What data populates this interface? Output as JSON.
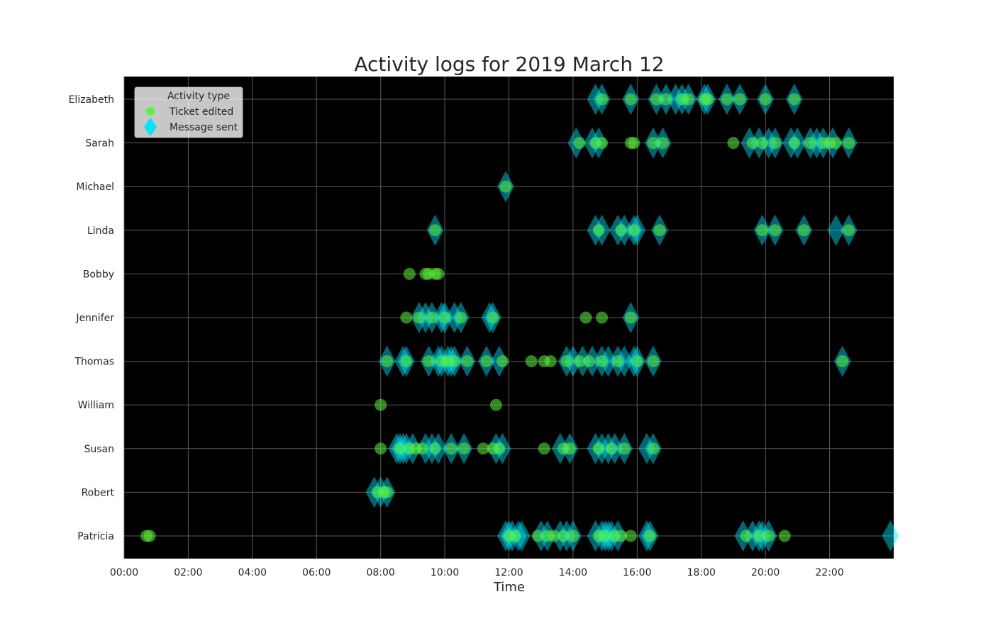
{
  "chart_data": {
    "type": "scatter",
    "title": "Activity logs for 2019 March 12",
    "xlabel": "Time",
    "ylabel": "",
    "x_unit": "time of day (HH:MM)",
    "xlim": [
      "00:00",
      "24:00"
    ],
    "x_ticks": [
      "00:00",
      "02:00",
      "04:00",
      "06:00",
      "08:00",
      "10:00",
      "12:00",
      "14:00",
      "16:00",
      "18:00",
      "20:00",
      "22:00"
    ],
    "categories": [
      "Elizabeth",
      "Sarah",
      "Michael",
      "Linda",
      "Bobby",
      "Jennifer",
      "Thomas",
      "William",
      "Susan",
      "Robert",
      "Patricia"
    ],
    "grid": true,
    "background": "#000000",
    "legend": {
      "title": "Activity type",
      "placement": "top-left",
      "entries": [
        "Ticket edited",
        "Message sent"
      ]
    },
    "series": [
      {
        "name": "Message sent",
        "marker": "diamond",
        "color": "#00e5ff",
        "points": [
          {
            "y": "Elizabeth",
            "x": [
              "14:42",
              "14:54",
              "15:48",
              "16:36",
              "16:54",
              "17:12",
              "17:24",
              "17:36",
              "18:06",
              "18:12",
              "18:48",
              "19:12",
              "20:00",
              "20:54"
            ]
          },
          {
            "y": "Sarah",
            "x": [
              "14:06",
              "14:36",
              "14:48",
              "16:30",
              "16:48",
              "19:30",
              "19:48",
              "20:06",
              "20:18",
              "20:48",
              "21:00",
              "21:24",
              "21:36",
              "21:48",
              "22:06",
              "22:36"
            ]
          },
          {
            "y": "Michael",
            "x": [
              "11:54"
            ]
          },
          {
            "y": "Linda",
            "x": [
              "09:42",
              "14:42",
              "14:54",
              "15:24",
              "15:36",
              "15:54",
              "16:00",
              "16:42",
              "19:54",
              "20:18",
              "21:12",
              "22:12",
              "22:36"
            ]
          },
          {
            "y": "Jennifer",
            "x": [
              "09:12",
              "09:24",
              "09:36",
              "09:54",
              "10:00",
              "10:18",
              "10:30",
              "11:24",
              "11:30",
              "15:48"
            ]
          },
          {
            "y": "Thomas",
            "x": [
              "08:12",
              "08:42",
              "08:48",
              "09:30",
              "09:48",
              "09:54",
              "10:06",
              "10:12",
              "10:18",
              "10:42",
              "11:18",
              "11:42",
              "13:48",
              "14:00",
              "14:18",
              "14:36",
              "14:54",
              "15:06",
              "15:24",
              "15:36",
              "15:54",
              "16:00",
              "16:30",
              "22:24"
            ]
          },
          {
            "y": "Susan",
            "x": [
              "08:30",
              "08:36",
              "08:42",
              "08:48",
              "09:00",
              "09:24",
              "09:36",
              "09:48",
              "10:12",
              "10:36",
              "11:36",
              "11:48",
              "13:36",
              "13:54",
              "14:42",
              "14:54",
              "15:06",
              "15:18",
              "15:36",
              "16:18",
              "16:30"
            ]
          },
          {
            "y": "Robert",
            "x": [
              "07:48",
              "08:00",
              "08:12"
            ]
          },
          {
            "y": "Patricia",
            "x": [
              "11:54",
              "12:00",
              "12:06",
              "12:18",
              "12:24",
              "13:00",
              "13:12",
              "13:36",
              "13:48",
              "14:00",
              "14:42",
              "14:54",
              "15:00",
              "15:06",
              "15:12",
              "15:24",
              "16:18",
              "16:24",
              "19:18",
              "19:36",
              "19:48",
              "19:54",
              "20:06",
              "23:54"
            ]
          }
        ]
      },
      {
        "name": "Ticket edited",
        "marker": "circle",
        "color": "#5cf23c",
        "points": [
          {
            "y": "Elizabeth",
            "x": [
              "14:54",
              "15:48",
              "16:36",
              "16:54",
              "17:24",
              "17:36",
              "18:06",
              "18:12",
              "18:48",
              "19:12",
              "20:00",
              "20:54"
            ]
          },
          {
            "y": "Sarah",
            "x": [
              "14:12",
              "14:42",
              "14:54",
              "15:48",
              "15:54",
              "16:30",
              "16:48",
              "19:00",
              "19:36",
              "19:54",
              "20:18",
              "20:54",
              "21:24",
              "21:48",
              "22:00",
              "22:12",
              "22:36"
            ]
          },
          {
            "y": "Michael",
            "x": [
              "11:54"
            ]
          },
          {
            "y": "Linda",
            "x": [
              "09:42",
              "14:48",
              "15:30",
              "15:54",
              "16:42",
              "19:54",
              "20:18",
              "21:12",
              "22:36"
            ]
          },
          {
            "y": "Bobby",
            "x": [
              "08:54",
              "09:24",
              "09:30",
              "09:42",
              "09:48"
            ]
          },
          {
            "y": "Jennifer",
            "x": [
              "08:48",
              "09:12",
              "09:36",
              "10:00",
              "10:30",
              "11:30",
              "14:24",
              "14:54",
              "15:48"
            ]
          },
          {
            "y": "Thomas",
            "x": [
              "08:12",
              "08:48",
              "09:30",
              "09:54",
              "10:06",
              "10:18",
              "10:42",
              "11:18",
              "11:48",
              "12:42",
              "13:06",
              "13:18",
              "13:48",
              "14:12",
              "14:30",
              "14:54",
              "15:24",
              "16:00",
              "16:30",
              "22:24"
            ]
          },
          {
            "y": "William",
            "x": [
              "08:00",
              "11:36"
            ]
          },
          {
            "y": "Susan",
            "x": [
              "08:00",
              "08:36",
              "08:54",
              "09:06",
              "09:18",
              "09:42",
              "10:12",
              "10:36",
              "11:12",
              "11:30",
              "11:42",
              "13:06",
              "13:42",
              "13:54",
              "14:48",
              "15:12",
              "15:36",
              "16:30"
            ]
          },
          {
            "y": "Robert",
            "x": [
              "07:54",
              "08:06",
              "08:12"
            ]
          },
          {
            "y": "Patricia",
            "x": [
              "00:42",
              "00:48",
              "12:00",
              "12:12",
              "12:54",
              "13:12",
              "13:24",
              "13:42",
              "14:00",
              "14:48",
              "15:00",
              "15:18",
              "15:30",
              "15:48",
              "16:24",
              "19:24",
              "19:48",
              "20:06",
              "20:36"
            ]
          }
        ]
      }
    ]
  }
}
